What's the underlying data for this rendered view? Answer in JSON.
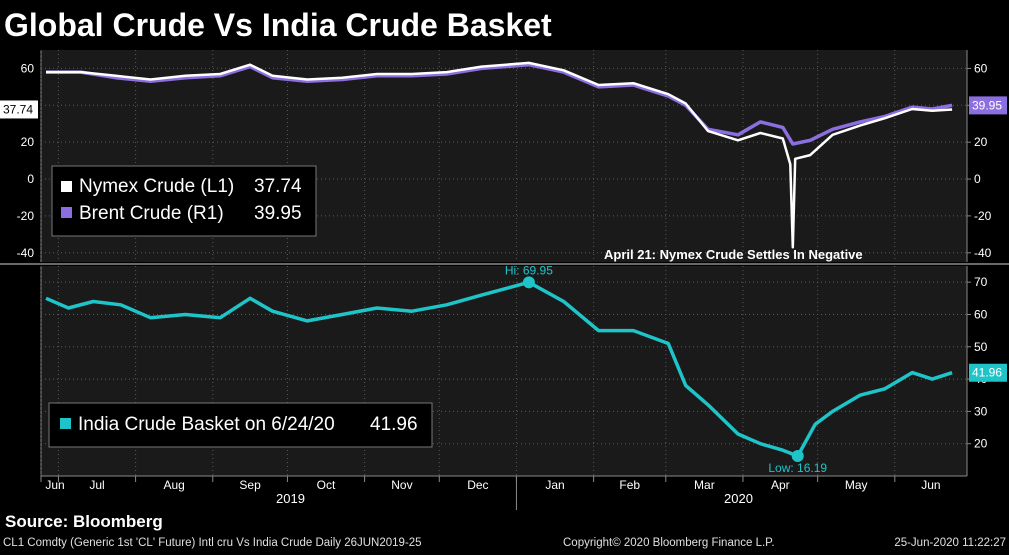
{
  "title": "Global Crude Vs India Crude Basket",
  "source": "Source: Bloomberg",
  "footer": {
    "left": "CL1 Comdty (Generic 1st 'CL' Future) Intl cru Vs India Crude  Daily 26JUN2019-25",
    "center": "Copyright© 2020 Bloomberg Finance L.P.",
    "right": "25-Jun-2020 11:22:27"
  },
  "colors": {
    "nymex": "#ffffff",
    "brent": "#8b6fe0",
    "india": "#1fc4c8",
    "panel_bg": "#1a1a1a",
    "grid": "#5a5a5a"
  },
  "x_axis": {
    "months": [
      "Jun",
      "Jul",
      "Aug",
      "Sep",
      "Oct",
      "Nov",
      "Dec",
      "Jan",
      "Feb",
      "Mar",
      "Apr",
      "May",
      "Jun"
    ],
    "years": [
      "2019",
      "2020"
    ]
  },
  "chart_data": [
    {
      "type": "line",
      "title": "",
      "left_axis": {
        "ticks": [
          60,
          40,
          20,
          0,
          -20,
          -40
        ],
        "ylim": [
          -45,
          70
        ]
      },
      "right_axis": {
        "ticks": [
          60,
          40,
          20,
          0,
          -20,
          -40
        ],
        "ylim": [
          -45,
          70
        ]
      },
      "grid": true,
      "legend": {
        "placement": "bottom-left",
        "entries": [
          {
            "label": "Nymex Crude (L1)",
            "value": "37.74"
          },
          {
            "label": "Brent Crude (R1)",
            "value": "39.95"
          }
        ]
      },
      "last_value_labels": {
        "left": "37.74",
        "right": "39.95"
      },
      "annotation": "April 21: Nymex Crude Settles In Negative",
      "series": [
        {
          "name": "Nymex Crude (L1)",
          "axis": "left",
          "color": "#ffffff",
          "x": [
            "2019-06-26",
            "2019-07-10",
            "2019-07-24",
            "2019-08-07",
            "2019-08-21",
            "2019-09-04",
            "2019-09-16",
            "2019-09-25",
            "2019-10-09",
            "2019-10-23",
            "2019-11-06",
            "2019-11-20",
            "2019-12-04",
            "2019-12-18",
            "2020-01-06",
            "2020-01-20",
            "2020-02-03",
            "2020-02-17",
            "2020-03-02",
            "2020-03-09",
            "2020-03-18",
            "2020-03-30",
            "2020-04-08",
            "2020-04-17",
            "2020-04-20",
            "2020-04-21",
            "2020-04-22",
            "2020-04-28",
            "2020-05-07",
            "2020-05-18",
            "2020-05-28",
            "2020-06-08",
            "2020-06-16",
            "2020-06-24"
          ],
          "y": [
            58,
            58,
            56,
            54,
            56,
            57,
            62,
            56,
            54,
            55,
            57,
            57,
            58,
            61,
            63,
            59,
            51,
            52,
            46,
            41,
            26,
            21,
            25,
            22,
            8,
            -37,
            11,
            13,
            24,
            29,
            33,
            38,
            37,
            37.74
          ]
        },
        {
          "name": "Brent Crude (R1)",
          "axis": "right",
          "color": "#8b6fe0",
          "x": [
            "2019-06-26",
            "2019-07-10",
            "2019-07-24",
            "2019-08-07",
            "2019-08-21",
            "2019-09-04",
            "2019-09-16",
            "2019-09-25",
            "2019-10-09",
            "2019-10-23",
            "2019-11-06",
            "2019-11-20",
            "2019-12-04",
            "2019-12-18",
            "2020-01-06",
            "2020-01-20",
            "2020-02-03",
            "2020-02-17",
            "2020-03-02",
            "2020-03-09",
            "2020-03-18",
            "2020-03-30",
            "2020-04-08",
            "2020-04-17",
            "2020-04-21",
            "2020-04-28",
            "2020-05-07",
            "2020-05-18",
            "2020-05-28",
            "2020-06-08",
            "2020-06-16",
            "2020-06-24"
          ],
          "y": [
            58,
            58,
            55,
            53,
            55,
            56,
            61,
            55,
            53,
            54,
            56,
            56,
            57,
            60,
            62,
            58,
            50,
            51,
            45,
            40,
            27,
            24,
            31,
            28,
            19,
            21,
            27,
            31,
            34,
            39,
            38,
            39.95
          ]
        }
      ]
    },
    {
      "type": "line",
      "title": "",
      "right_axis": {
        "ticks": [
          70,
          60,
          50,
          40,
          30,
          20
        ],
        "ylim": [
          10,
          75
        ]
      },
      "grid": true,
      "legend": {
        "placement": "bottom-left",
        "entries": [
          {
            "label": "India Crude Basket on 6/24/20",
            "value": "41.96"
          }
        ]
      },
      "last_value_label": "41.96",
      "annotations": [
        {
          "text": "Hi: 69.95",
          "x": "2020-01-06",
          "y": 69.95
        },
        {
          "text": "Low: 16.19",
          "x": "2020-04-23",
          "y": 16.19
        }
      ],
      "series": [
        {
          "name": "India Crude Basket on 6/24/20",
          "color": "#1fc4c8",
          "x": [
            "2019-06-26",
            "2019-07-05",
            "2019-07-15",
            "2019-07-26",
            "2019-08-07",
            "2019-08-21",
            "2019-09-04",
            "2019-09-16",
            "2019-09-25",
            "2019-10-09",
            "2019-10-23",
            "2019-11-06",
            "2019-11-20",
            "2019-12-04",
            "2019-12-18",
            "2020-01-06",
            "2020-01-20",
            "2020-02-03",
            "2020-02-17",
            "2020-03-02",
            "2020-03-09",
            "2020-03-18",
            "2020-03-30",
            "2020-04-08",
            "2020-04-17",
            "2020-04-23",
            "2020-04-30",
            "2020-05-07",
            "2020-05-18",
            "2020-05-28",
            "2020-06-08",
            "2020-06-16",
            "2020-06-24"
          ],
          "y": [
            65,
            62,
            64,
            63,
            59,
            60,
            59,
            65,
            61,
            58,
            60,
            62,
            61,
            63,
            66,
            69.95,
            64,
            55,
            55,
            51,
            38,
            32,
            23,
            20,
            18,
            16.19,
            26,
            30,
            35,
            37,
            42,
            40,
            41.96
          ]
        }
      ]
    }
  ]
}
